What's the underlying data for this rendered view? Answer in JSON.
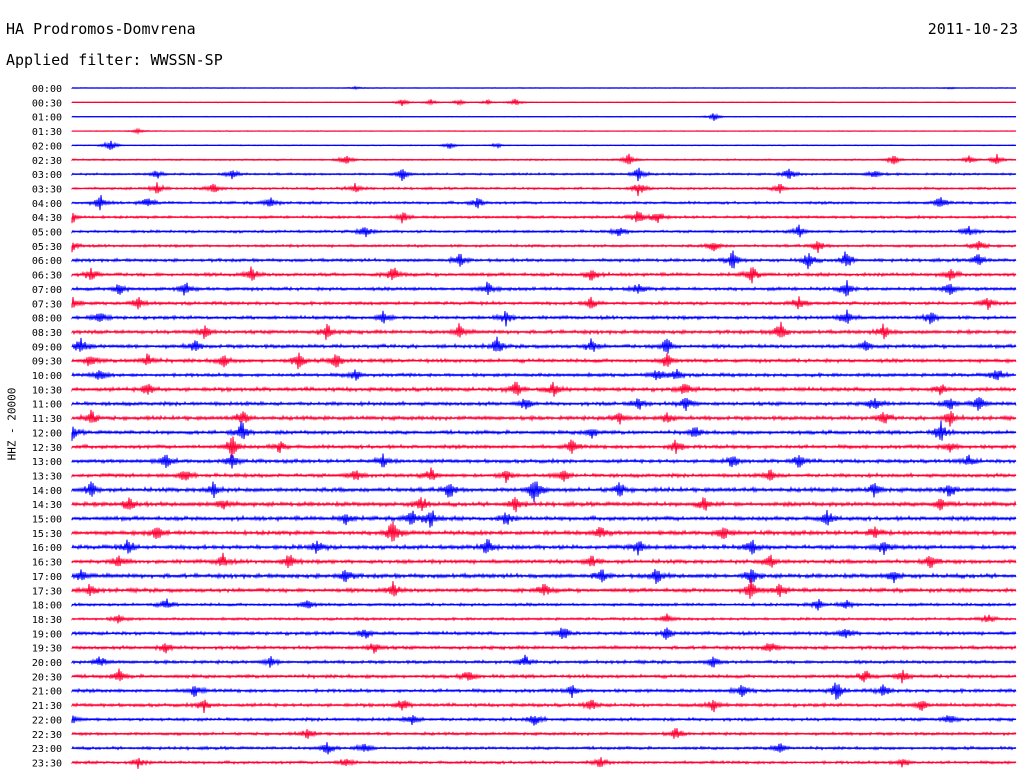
{
  "header": {
    "station": "HA Prodromos-Domvrena",
    "date": "2011-10-23",
    "filter": "Applied filter: WWSSN-SP"
  },
  "chart_data": {
    "type": "line",
    "title": "HA Prodromos-Domvrena",
    "ylabel": "HHZ - 20000",
    "colors": {
      "even": "#0000ff",
      "odd": "#ff0033"
    },
    "rows": [
      {
        "label": "00:00",
        "noise": 0.25,
        "events": [
          [
            0.3,
            0.3
          ],
          [
            0.93,
            0.2
          ]
        ]
      },
      {
        "label": "00:30",
        "noise": 0.25,
        "events": [
          [
            0.35,
            0.8
          ],
          [
            0.38,
            0.6
          ],
          [
            0.41,
            0.7
          ],
          [
            0.44,
            0.5
          ],
          [
            0.47,
            0.8
          ]
        ]
      },
      {
        "label": "01:00",
        "noise": 0.3,
        "events": [
          [
            0.68,
            0.9
          ]
        ]
      },
      {
        "label": "01:30",
        "noise": 0.3,
        "events": [
          [
            0.07,
            0.5
          ]
        ]
      },
      {
        "label": "02:00",
        "noise": 0.35,
        "events": [
          [
            0.04,
            1.3
          ],
          [
            0.4,
            0.8
          ],
          [
            0.45,
            0.5
          ]
        ]
      },
      {
        "label": "02:30",
        "noise": 0.6,
        "events": [
          [
            0.29,
            1.4
          ],
          [
            0.59,
            1.3
          ],
          [
            0.87,
            1.2
          ],
          [
            0.95,
            0.8
          ],
          [
            0.98,
            1.1
          ]
        ]
      },
      {
        "label": "03:00",
        "noise": 0.8,
        "events": [
          [
            0.09,
            1.0
          ],
          [
            0.17,
            1.2
          ],
          [
            0.35,
            1.3
          ],
          [
            0.6,
            1.6
          ],
          [
            0.76,
            1.4
          ],
          [
            0.85,
            1.0
          ]
        ]
      },
      {
        "label": "03:30",
        "noise": 0.9,
        "events": [
          [
            0.09,
            1.2
          ],
          [
            0.15,
            1.1
          ],
          [
            0.3,
            1.2
          ],
          [
            0.6,
            1.6
          ],
          [
            0.75,
            1.2
          ]
        ]
      },
      {
        "label": "04:00",
        "noise": 1.0,
        "events": [
          [
            0.03,
            1.5
          ],
          [
            0.08,
            1.2
          ],
          [
            0.21,
            1.2
          ],
          [
            0.43,
            1.2
          ],
          [
            0.92,
            1.3
          ]
        ]
      },
      {
        "label": "04:30",
        "noise": 1.0,
        "events": [
          [
            0.0,
            1.5
          ],
          [
            0.35,
            1.2
          ],
          [
            0.6,
            1.7
          ],
          [
            0.62,
            1.2
          ]
        ]
      },
      {
        "label": "05:00",
        "noise": 1.0,
        "events": [
          [
            0.31,
            1.5
          ],
          [
            0.58,
            1.2
          ],
          [
            0.77,
            1.4
          ],
          [
            0.95,
            1.2
          ]
        ]
      },
      {
        "label": "05:30",
        "noise": 1.0,
        "events": [
          [
            0.0,
            1.2
          ],
          [
            0.68,
            1.2
          ],
          [
            0.79,
            1.3
          ],
          [
            0.96,
            1.4
          ]
        ]
      },
      {
        "label": "06:00",
        "noise": 1.2,
        "events": [
          [
            0.41,
            1.5
          ],
          [
            0.7,
            2.0
          ],
          [
            0.78,
            1.8
          ],
          [
            0.82,
            2.0
          ],
          [
            0.96,
            1.3
          ]
        ]
      },
      {
        "label": "06:30",
        "noise": 1.3,
        "events": [
          [
            0.02,
            1.5
          ],
          [
            0.19,
            1.6
          ],
          [
            0.34,
            1.8
          ],
          [
            0.55,
            1.5
          ],
          [
            0.72,
            1.8
          ],
          [
            0.93,
            1.4
          ]
        ]
      },
      {
        "label": "07:00",
        "noise": 1.3,
        "events": [
          [
            0.05,
            1.4
          ],
          [
            0.12,
            1.6
          ],
          [
            0.44,
            1.5
          ],
          [
            0.6,
            1.4
          ],
          [
            0.82,
            1.9
          ],
          [
            0.93,
            1.5
          ]
        ]
      },
      {
        "label": "07:30",
        "noise": 1.2,
        "events": [
          [
            0.0,
            1.5
          ],
          [
            0.07,
            1.3
          ],
          [
            0.55,
            1.3
          ],
          [
            0.77,
            1.6
          ],
          [
            0.97,
            1.3
          ]
        ]
      },
      {
        "label": "08:00",
        "noise": 1.3,
        "events": [
          [
            0.03,
            1.5
          ],
          [
            0.33,
            1.4
          ],
          [
            0.46,
            1.7
          ],
          [
            0.82,
            1.8
          ],
          [
            0.91,
            1.5
          ]
        ]
      },
      {
        "label": "08:30",
        "noise": 1.4,
        "events": [
          [
            0.14,
            1.6
          ],
          [
            0.27,
            1.8
          ],
          [
            0.41,
            1.6
          ],
          [
            0.75,
            2.3
          ],
          [
            0.86,
            1.7
          ]
        ]
      },
      {
        "label": "09:00",
        "noise": 1.4,
        "events": [
          [
            0.01,
            1.8
          ],
          [
            0.13,
            1.3
          ],
          [
            0.45,
            1.7
          ],
          [
            0.55,
            1.6
          ],
          [
            0.63,
            1.9
          ],
          [
            0.84,
            1.5
          ]
        ]
      },
      {
        "label": "09:30",
        "noise": 1.4,
        "events": [
          [
            0.02,
            1.6
          ],
          [
            0.08,
            1.5
          ],
          [
            0.16,
            1.4
          ],
          [
            0.24,
            1.8
          ],
          [
            0.28,
            1.8
          ],
          [
            0.63,
            1.5
          ]
        ]
      },
      {
        "label": "10:00",
        "noise": 1.3,
        "events": [
          [
            0.03,
            1.4
          ],
          [
            0.3,
            1.2
          ],
          [
            0.62,
            1.3
          ],
          [
            0.64,
            1.3
          ],
          [
            0.98,
            1.3
          ]
        ]
      },
      {
        "label": "10:30",
        "noise": 1.5,
        "events": [
          [
            0.08,
            1.4
          ],
          [
            0.47,
            2.0
          ],
          [
            0.51,
            1.5
          ],
          [
            0.65,
            1.4
          ],
          [
            0.92,
            1.3
          ]
        ]
      },
      {
        "label": "11:00",
        "noise": 1.4,
        "events": [
          [
            0.48,
            1.4
          ],
          [
            0.6,
            1.5
          ],
          [
            0.65,
            1.6
          ],
          [
            0.85,
            1.7
          ],
          [
            0.93,
            1.6
          ],
          [
            0.96,
            1.6
          ]
        ]
      },
      {
        "label": "11:30",
        "noise": 1.5,
        "events": [
          [
            0.02,
            1.8
          ],
          [
            0.18,
            1.7
          ],
          [
            0.58,
            1.5
          ],
          [
            0.63,
            1.3
          ],
          [
            0.86,
            1.4
          ],
          [
            0.93,
            1.6
          ]
        ]
      },
      {
        "label": "12:00",
        "noise": 1.4,
        "events": [
          [
            0.0,
            1.6
          ],
          [
            0.18,
            2.6
          ],
          [
            0.55,
            1.3
          ],
          [
            0.66,
            1.3
          ],
          [
            0.92,
            2.4
          ]
        ]
      },
      {
        "label": "12:30",
        "noise": 1.4,
        "events": [
          [
            0.17,
            2.4
          ],
          [
            0.22,
            1.3
          ],
          [
            0.53,
            1.5
          ],
          [
            0.64,
            1.6
          ],
          [
            0.93,
            1.3
          ]
        ]
      },
      {
        "label": "13:00",
        "noise": 1.4,
        "events": [
          [
            0.1,
            1.6
          ],
          [
            0.17,
            1.5
          ],
          [
            0.33,
            1.4
          ],
          [
            0.7,
            1.4
          ],
          [
            0.77,
            1.5
          ],
          [
            0.95,
            1.3
          ]
        ]
      },
      {
        "label": "13:30",
        "noise": 1.4,
        "events": [
          [
            0.12,
            1.5
          ],
          [
            0.3,
            1.5
          ],
          [
            0.38,
            1.6
          ],
          [
            0.46,
            1.4
          ],
          [
            0.52,
            1.4
          ],
          [
            0.74,
            1.2
          ]
        ]
      },
      {
        "label": "14:00",
        "noise": 1.6,
        "events": [
          [
            0.02,
            1.8
          ],
          [
            0.15,
            1.6
          ],
          [
            0.4,
            1.8
          ],
          [
            0.49,
            3.2
          ],
          [
            0.58,
            1.6
          ],
          [
            0.85,
            1.5
          ],
          [
            0.93,
            1.6
          ]
        ]
      },
      {
        "label": "14:30",
        "noise": 1.6,
        "events": [
          [
            0.06,
            1.5
          ],
          [
            0.16,
            1.5
          ],
          [
            0.37,
            1.8
          ],
          [
            0.47,
            1.5
          ],
          [
            0.67,
            1.6
          ],
          [
            0.92,
            1.5
          ]
        ]
      },
      {
        "label": "15:00",
        "noise": 1.6,
        "events": [
          [
            0.29,
            1.5
          ],
          [
            0.36,
            1.9
          ],
          [
            0.38,
            2.2
          ],
          [
            0.46,
            1.5
          ],
          [
            0.8,
            1.6
          ]
        ]
      },
      {
        "label": "15:30",
        "noise": 1.6,
        "events": [
          [
            0.09,
            1.5
          ],
          [
            0.34,
            3.5
          ],
          [
            0.56,
            1.4
          ],
          [
            0.69,
            1.5
          ],
          [
            0.85,
            1.5
          ]
        ]
      },
      {
        "label": "16:00",
        "noise": 1.6,
        "events": [
          [
            0.06,
            1.6
          ],
          [
            0.26,
            1.5
          ],
          [
            0.44,
            1.8
          ],
          [
            0.6,
            1.6
          ],
          [
            0.72,
            1.6
          ],
          [
            0.86,
            1.5
          ]
        ]
      },
      {
        "label": "16:30",
        "noise": 1.5,
        "events": [
          [
            0.05,
            1.4
          ],
          [
            0.16,
            1.5
          ],
          [
            0.23,
            1.6
          ],
          [
            0.55,
            1.5
          ],
          [
            0.74,
            1.5
          ],
          [
            0.91,
            1.4
          ]
        ]
      },
      {
        "label": "17:00",
        "noise": 1.6,
        "events": [
          [
            0.01,
            1.4
          ],
          [
            0.29,
            1.6
          ],
          [
            0.56,
            1.5
          ],
          [
            0.62,
            1.7
          ],
          [
            0.72,
            1.8
          ],
          [
            0.87,
            1.3
          ]
        ]
      },
      {
        "label": "17:30",
        "noise": 1.5,
        "events": [
          [
            0.02,
            1.4
          ],
          [
            0.34,
            1.7
          ],
          [
            0.5,
            1.5
          ],
          [
            0.72,
            2.4
          ],
          [
            0.75,
            1.6
          ]
        ]
      },
      {
        "label": "18:00",
        "noise": 1.1,
        "events": [
          [
            0.1,
            1.2
          ],
          [
            0.25,
            1.1
          ],
          [
            0.79,
            1.2
          ],
          [
            0.82,
            1.2
          ]
        ]
      },
      {
        "label": "18:30",
        "noise": 1.0,
        "events": [
          [
            0.05,
            1.0
          ],
          [
            0.63,
            1.1
          ],
          [
            0.97,
            1.0
          ]
        ]
      },
      {
        "label": "19:00",
        "noise": 1.3,
        "events": [
          [
            0.31,
            1.3
          ],
          [
            0.52,
            1.9
          ],
          [
            0.63,
            1.3
          ],
          [
            0.82,
            1.3
          ]
        ]
      },
      {
        "label": "19:30",
        "noise": 1.3,
        "events": [
          [
            0.1,
            1.2
          ],
          [
            0.32,
            1.3
          ],
          [
            0.74,
            1.3
          ]
        ]
      },
      {
        "label": "20:00",
        "noise": 1.2,
        "events": [
          [
            0.03,
            1.3
          ],
          [
            0.21,
            1.2
          ],
          [
            0.48,
            1.2
          ],
          [
            0.68,
            1.3
          ]
        ]
      },
      {
        "label": "20:30",
        "noise": 1.3,
        "events": [
          [
            0.05,
            1.3
          ],
          [
            0.42,
            1.2
          ],
          [
            0.84,
            1.5
          ],
          [
            0.88,
            1.3
          ]
        ]
      },
      {
        "label": "21:00",
        "noise": 1.3,
        "events": [
          [
            0.13,
            1.3
          ],
          [
            0.53,
            1.4
          ],
          [
            0.71,
            1.3
          ],
          [
            0.81,
            2.0
          ],
          [
            0.86,
            1.4
          ]
        ]
      },
      {
        "label": "21:30",
        "noise": 1.3,
        "events": [
          [
            0.14,
            1.4
          ],
          [
            0.35,
            1.3
          ],
          [
            0.55,
            1.2
          ],
          [
            0.68,
            1.3
          ],
          [
            0.9,
            1.2
          ]
        ]
      },
      {
        "label": "22:00",
        "noise": 1.2,
        "events": [
          [
            0.0,
            1.2
          ],
          [
            0.36,
            1.2
          ],
          [
            0.49,
            1.3
          ],
          [
            0.93,
            1.3
          ]
        ]
      },
      {
        "label": "22:30",
        "noise": 1.1,
        "events": [
          [
            0.25,
            1.1
          ],
          [
            0.64,
            1.2
          ]
        ]
      },
      {
        "label": "23:00",
        "noise": 1.1,
        "events": [
          [
            0.27,
            1.4
          ],
          [
            0.31,
            1.2
          ],
          [
            0.75,
            1.3
          ]
        ]
      },
      {
        "label": "23:30",
        "noise": 1.1,
        "events": [
          [
            0.07,
            1.1
          ],
          [
            0.29,
            1.2
          ],
          [
            0.56,
            1.1
          ],
          [
            0.88,
            1.1
          ]
        ]
      }
    ]
  }
}
